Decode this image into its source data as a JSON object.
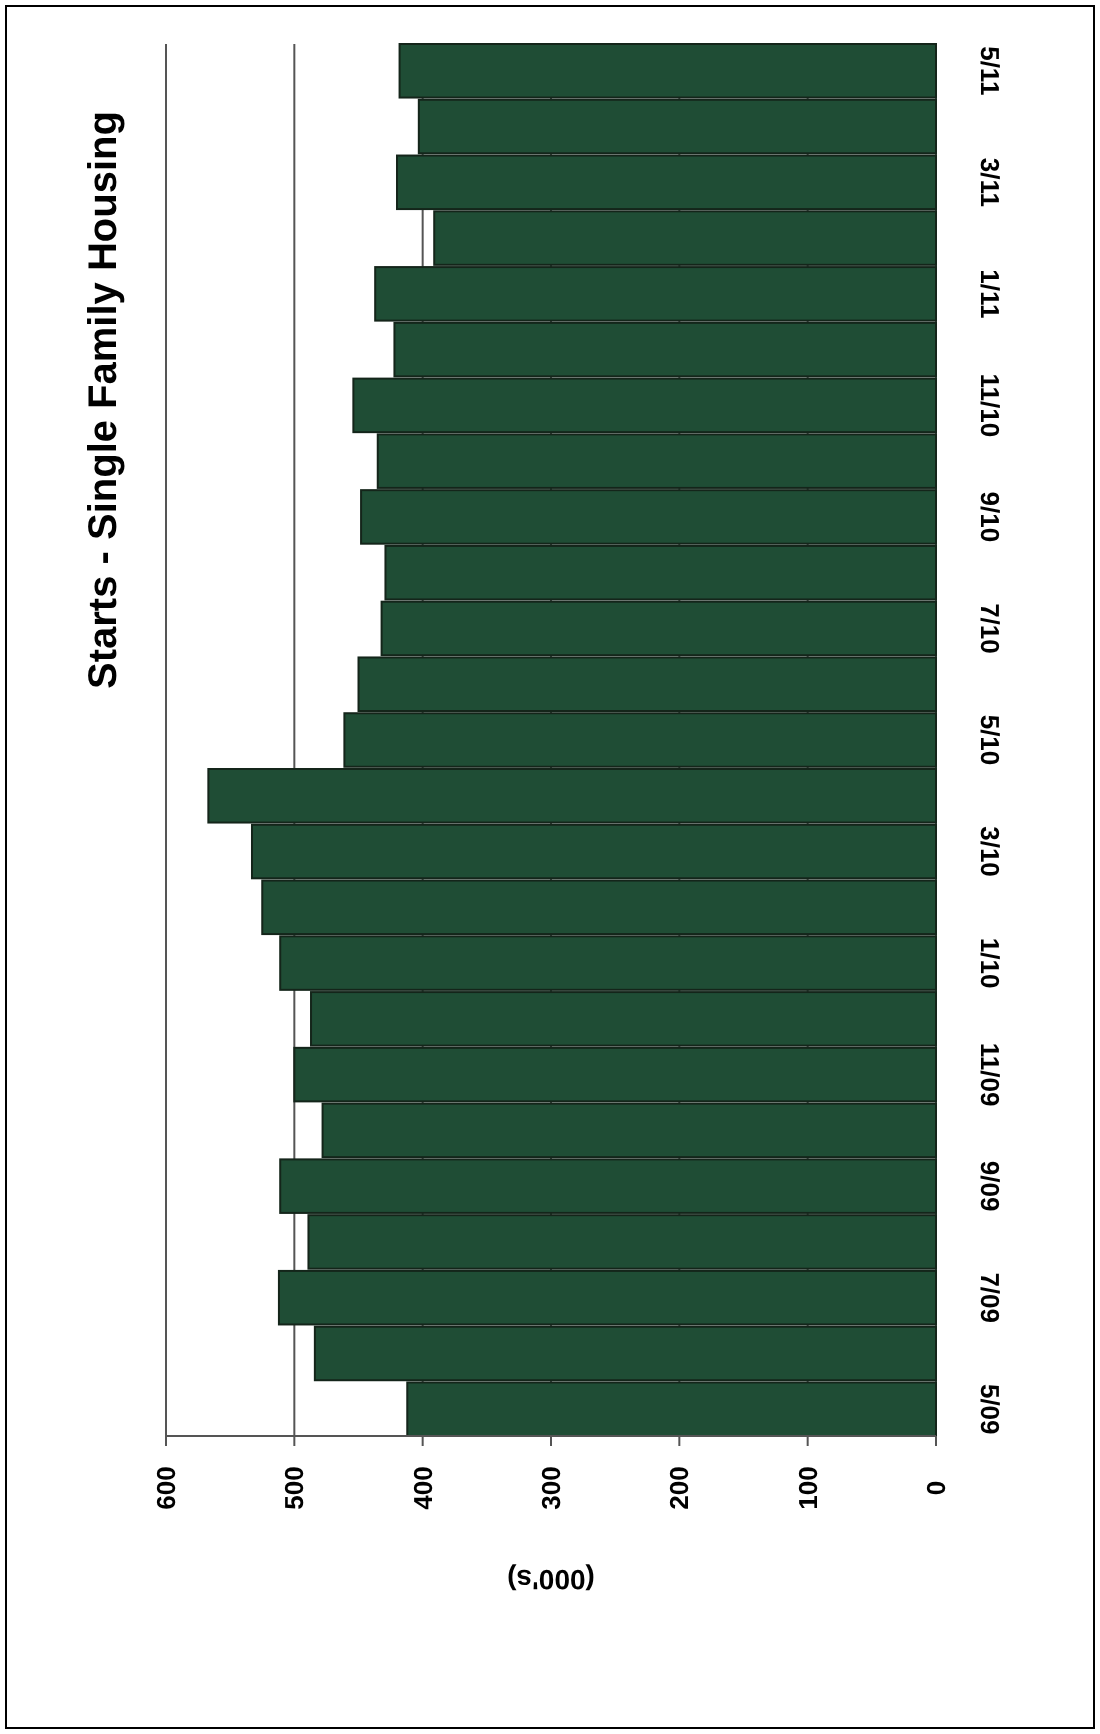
{
  "chart_data": {
    "type": "bar",
    "orientation": "horizontal",
    "title": "Starts - Single Family Housing",
    "xlabel": "(000's)",
    "categories": [
      "5/11",
      null,
      "3/11",
      null,
      "1/11",
      null,
      "11/10",
      null,
      "9/10",
      null,
      "7/10",
      null,
      "5/10",
      null,
      "3/10",
      null,
      "1/10",
      null,
      "11/09",
      null,
      "9/09",
      null,
      "7/09",
      null,
      "5/09"
    ],
    "values": [
      418,
      403,
      420,
      391,
      437,
      422,
      454,
      435,
      448,
      429,
      432,
      450,
      461,
      567,
      533,
      525,
      511,
      487,
      500,
      478,
      511,
      489,
      512,
      484,
      412
    ],
    "color": "#1f4d35",
    "xlim": [
      600,
      0
    ],
    "xticks": [
      0,
      100,
      200,
      300,
      400,
      500,
      600
    ],
    "grid": "x"
  }
}
